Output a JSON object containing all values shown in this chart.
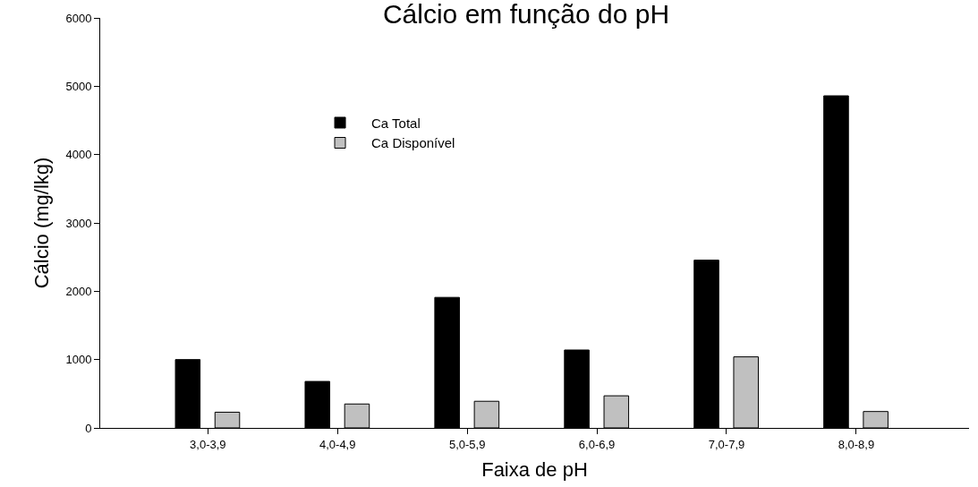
{
  "chart_data": {
    "type": "bar",
    "title": "Cálcio em função do pH",
    "xlabel": "Faixa de pH",
    "ylabel": "Cálcio (mg/lkg)",
    "categories": [
      "3,0-3,9",
      "4,0-4,9",
      "5,0-5,9",
      "6,0-6,9",
      "7,0-7,9",
      "8,0-8,9"
    ],
    "series": [
      {
        "name": "Ca Total",
        "color": "#000000",
        "values": [
          1000,
          680,
          1910,
          1140,
          2455,
          4860
        ]
      },
      {
        "name": "Ca Disponível",
        "color": "#c0c0c0",
        "values": [
          230,
          350,
          390,
          470,
          1040,
          240
        ]
      }
    ],
    "ylim": [
      0,
      6000
    ],
    "yticks": [
      0,
      1000,
      2000,
      3000,
      4000,
      5000,
      6000
    ],
    "legend": "top left"
  }
}
